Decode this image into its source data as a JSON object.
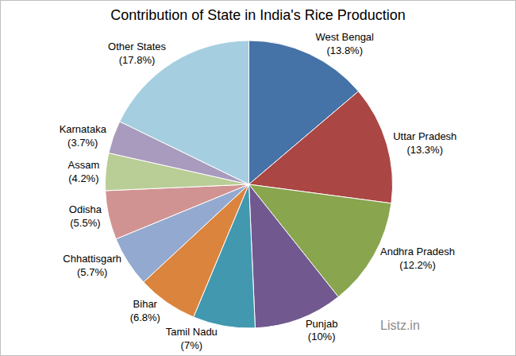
{
  "chart_data": {
    "type": "pie",
    "title": "Contribution of State in India's Rice Production",
    "categories": [
      "West Bengal",
      "Uttar Pradesh",
      "Andhra Pradesh",
      "Punjab",
      "Tamil Nadu",
      "Bihar",
      "Chhattisgarh",
      "Odisha",
      "Assam",
      "Karnataka",
      "Other States"
    ],
    "values": [
      13.8,
      13.3,
      12.2,
      10,
      7,
      6.8,
      5.7,
      5.5,
      4.2,
      3.7,
      17.8
    ],
    "value_labels": [
      "(13.8%)",
      "(13.3%)",
      "(12.2%)",
      "(10%)",
      "(7%)",
      "(6.8%)",
      "(5.7%)",
      "(5.5%)",
      "(4.2%)",
      "(3.7%)",
      "(17.8%)"
    ],
    "colors": [
      "#4572a7",
      "#aa4643",
      "#89a54e",
      "#71588f",
      "#4198af",
      "#db843d",
      "#93a9cf",
      "#d19392",
      "#b9cd96",
      "#a99bbd",
      "#a5cfe0"
    ],
    "data_labels": true,
    "annotations": [
      "Listz.in"
    ]
  }
}
